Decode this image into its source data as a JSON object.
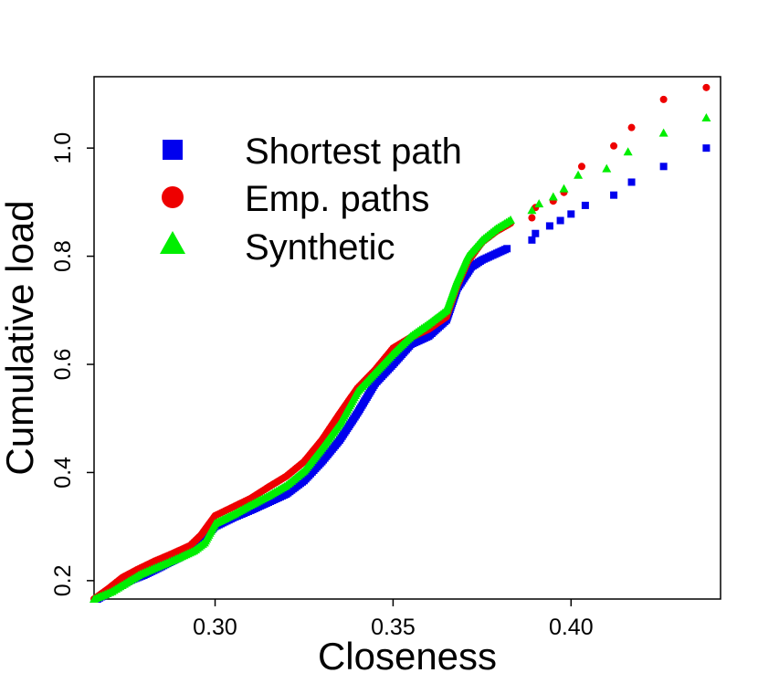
{
  "chart_data": {
    "type": "scatter",
    "title": "",
    "xlabel": "Closeness",
    "ylabel": "Cumulative load",
    "xlim": [
      0.266,
      0.442
    ],
    "ylim": [
      0.166,
      1.132
    ],
    "x_ticks": [
      0.3,
      0.35,
      0.4
    ],
    "x_tick_labels": [
      "0.30",
      "0.35",
      "0.40"
    ],
    "y_ticks": [
      0.2,
      0.4,
      0.6,
      0.8,
      1.0
    ],
    "y_tick_labels": [
      "0.2",
      "0.4",
      "0.6",
      "0.8",
      "1.0"
    ],
    "grid": false,
    "legend_position": "top-left",
    "series": [
      {
        "name": "Shortest path",
        "color": "#0000ee",
        "marker": "square",
        "points": [
          [
            0.267,
            0.166
          ],
          [
            0.272,
            0.185
          ],
          [
            0.276,
            0.2
          ],
          [
            0.28,
            0.21
          ],
          [
            0.285,
            0.226
          ],
          [
            0.29,
            0.243
          ],
          [
            0.294,
            0.262
          ],
          [
            0.297,
            0.28
          ],
          [
            0.3,
            0.3
          ],
          [
            0.305,
            0.316
          ],
          [
            0.31,
            0.33
          ],
          [
            0.315,
            0.345
          ],
          [
            0.32,
            0.36
          ],
          [
            0.325,
            0.385
          ],
          [
            0.33,
            0.42
          ],
          [
            0.335,
            0.46
          ],
          [
            0.34,
            0.51
          ],
          [
            0.345,
            0.565
          ],
          [
            0.35,
            0.6
          ],
          [
            0.355,
            0.637
          ],
          [
            0.36,
            0.652
          ],
          [
            0.365,
            0.682
          ],
          [
            0.368,
            0.74
          ],
          [
            0.372,
            0.78
          ],
          [
            0.375,
            0.793
          ],
          [
            0.378,
            0.802
          ],
          [
            0.382,
            0.814
          ],
          [
            0.389,
            0.83
          ],
          [
            0.39,
            0.842
          ],
          [
            0.394,
            0.856
          ],
          [
            0.397,
            0.866
          ],
          [
            0.4,
            0.878
          ],
          [
            0.404,
            0.894
          ],
          [
            0.412,
            0.913
          ],
          [
            0.417,
            0.937
          ],
          [
            0.426,
            0.966
          ],
          [
            0.438,
            1.0
          ]
        ]
      },
      {
        "name": "Emp. paths",
        "color": "#ee0000",
        "marker": "circle",
        "points": [
          [
            0.266,
            0.166
          ],
          [
            0.27,
            0.185
          ],
          [
            0.274,
            0.206
          ],
          [
            0.278,
            0.22
          ],
          [
            0.283,
            0.236
          ],
          [
            0.288,
            0.25
          ],
          [
            0.293,
            0.265
          ],
          [
            0.296,
            0.284
          ],
          [
            0.3,
            0.32
          ],
          [
            0.305,
            0.336
          ],
          [
            0.31,
            0.352
          ],
          [
            0.315,
            0.373
          ],
          [
            0.32,
            0.393
          ],
          [
            0.325,
            0.42
          ],
          [
            0.33,
            0.46
          ],
          [
            0.335,
            0.509
          ],
          [
            0.34,
            0.556
          ],
          [
            0.345,
            0.59
          ],
          [
            0.35,
            0.63
          ],
          [
            0.355,
            0.65
          ],
          [
            0.36,
            0.665
          ],
          [
            0.365,
            0.688
          ],
          [
            0.368,
            0.745
          ],
          [
            0.371,
            0.79
          ],
          [
            0.375,
            0.826
          ],
          [
            0.379,
            0.846
          ],
          [
            0.383,
            0.861
          ],
          [
            0.389,
            0.871
          ],
          [
            0.39,
            0.89
          ],
          [
            0.395,
            0.902
          ],
          [
            0.398,
            0.918
          ],
          [
            0.403,
            0.966
          ],
          [
            0.412,
            1.004
          ],
          [
            0.417,
            1.038
          ],
          [
            0.426,
            1.09
          ],
          [
            0.438,
            1.112
          ]
        ]
      },
      {
        "name": "Synthetic",
        "color": "#00ee00",
        "marker": "triangle",
        "points": [
          [
            0.266,
            0.166
          ],
          [
            0.271,
            0.18
          ],
          [
            0.275,
            0.196
          ],
          [
            0.279,
            0.212
          ],
          [
            0.284,
            0.226
          ],
          [
            0.289,
            0.24
          ],
          [
            0.294,
            0.255
          ],
          [
            0.297,
            0.27
          ],
          [
            0.3,
            0.306
          ],
          [
            0.305,
            0.322
          ],
          [
            0.31,
            0.34
          ],
          [
            0.315,
            0.357
          ],
          [
            0.32,
            0.376
          ],
          [
            0.325,
            0.403
          ],
          [
            0.33,
            0.445
          ],
          [
            0.335,
            0.49
          ],
          [
            0.34,
            0.55
          ],
          [
            0.345,
            0.585
          ],
          [
            0.35,
            0.62
          ],
          [
            0.355,
            0.652
          ],
          [
            0.36,
            0.675
          ],
          [
            0.365,
            0.7
          ],
          [
            0.368,
            0.755
          ],
          [
            0.371,
            0.8
          ],
          [
            0.375,
            0.83
          ],
          [
            0.379,
            0.851
          ],
          [
            0.383,
            0.867
          ],
          [
            0.389,
            0.885
          ],
          [
            0.391,
            0.897
          ],
          [
            0.395,
            0.91
          ],
          [
            0.398,
            0.925
          ],
          [
            0.402,
            0.95
          ],
          [
            0.41,
            0.962
          ],
          [
            0.416,
            0.993
          ],
          [
            0.426,
            1.028
          ],
          [
            0.438,
            1.056
          ]
        ]
      }
    ]
  }
}
